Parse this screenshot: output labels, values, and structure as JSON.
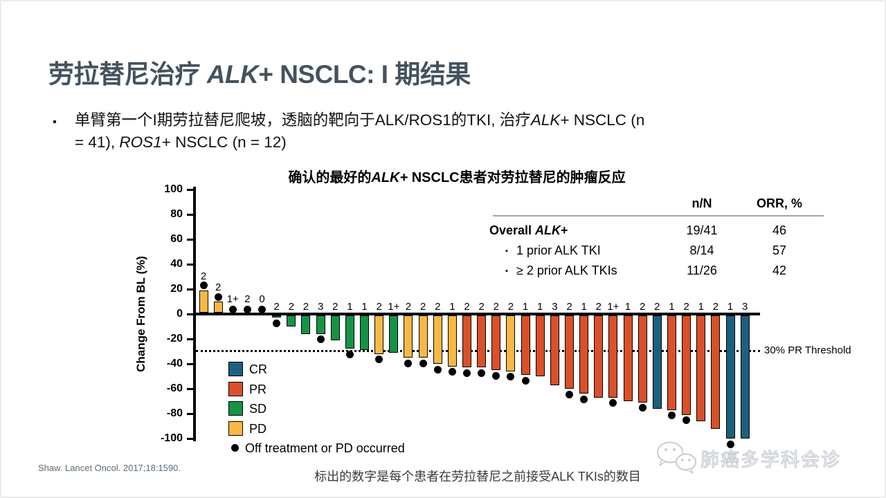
{
  "slide": {
    "title_runs": [
      {
        "t": "劳拉替尼治疗 "
      },
      {
        "t": "ALK",
        "i": 1
      },
      {
        "t": "+ NSCLC: I 期结果"
      }
    ],
    "bullet_marker": "▪",
    "bullet_lines": [
      [
        {
          "t": "单臂第一个I期劳拉替尼爬坡，透脑的靶向于ALK/ROS1的TKI, 治疗"
        },
        {
          "t": "ALK",
          "i": 1
        },
        {
          "t": "+ NSCLC (n"
        }
      ],
      [
        {
          "t": "= 41), "
        },
        {
          "t": "ROS1",
          "i": 1
        },
        {
          "t": "+ NSCLC (n = 12)"
        }
      ]
    ],
    "source": "Shaw. Lancet Oncol. 2017;18:1590.",
    "footnote": "标出的数字是每个患者在劳拉替尼之前接受ALK TKIs的数目",
    "watermark": "肺癌多学科会诊"
  },
  "colors": {
    "CR": "#1d5f7e",
    "PR": "#d9502a",
    "SD": "#169245",
    "PD": "#f7b845",
    "title": "#44525e"
  },
  "table": {
    "bullet": "▪",
    "col_headers": [
      "n/N",
      "ORR, %"
    ],
    "rows": [
      {
        "label_runs": [
          {
            "t": "Overall ",
            "b": 1
          },
          {
            "t": "ALK",
            "b": 1,
            "i": 1
          },
          {
            "t": "+",
            "b": 1
          }
        ],
        "nN": "19/41",
        "orr": "46",
        "indent": false
      },
      {
        "label_runs": [
          {
            "t": "1 prior ALK TKI"
          }
        ],
        "nN": "8/14",
        "orr": "57",
        "indent": true
      },
      {
        "label_runs": [
          {
            "t": "≥ 2 prior ALK TKIs"
          }
        ],
        "nN": "11/26",
        "orr": "42",
        "indent": true
      }
    ]
  },
  "chart_data": {
    "type": "bar",
    "title_runs": [
      {
        "t": "确认的最好的"
      },
      {
        "t": "ALK+",
        "i": 1
      },
      {
        "t": " NSCLC患者对劳拉替尼的肿瘤反应"
      }
    ],
    "ylabel": "Change From BL (%)",
    "ylim": [
      -100,
      100
    ],
    "yticks": [
      100,
      80,
      60,
      40,
      20,
      0,
      -20,
      -40,
      -60,
      -80,
      -100
    ],
    "threshold": {
      "value": -30,
      "label": "30% PR Threshold"
    },
    "legend": [
      {
        "key": "CR",
        "label": "CR"
      },
      {
        "key": "PR",
        "label": "PR"
      },
      {
        "key": "SD",
        "label": "SD"
      },
      {
        "key": "PD",
        "label": "PD"
      }
    ],
    "dot_legend_label": "Off treatment or PD occurred",
    "bars": [
      {
        "value": 19,
        "label": "2",
        "cat": "PD",
        "dot": true
      },
      {
        "value": 10,
        "label": "2",
        "cat": "PD",
        "dot": true
      },
      {
        "value": 0,
        "label": "1+",
        "cat": "",
        "dot": true
      },
      {
        "value": 0,
        "label": "2",
        "cat": "",
        "dot": true
      },
      {
        "value": 0,
        "label": "0",
        "cat": "",
        "dot": true
      },
      {
        "value": -3,
        "label": "2",
        "cat": "SD",
        "dot": true
      },
      {
        "value": -10,
        "label": "2",
        "cat": "SD",
        "dot": false
      },
      {
        "value": -16,
        "label": "2",
        "cat": "SD",
        "dot": false
      },
      {
        "value": -16,
        "label": "3",
        "cat": "SD",
        "dot": true
      },
      {
        "value": -21,
        "label": "2",
        "cat": "SD",
        "dot": false
      },
      {
        "value": -28,
        "label": "1",
        "cat": "SD",
        "dot": true
      },
      {
        "value": -29,
        "label": "1",
        "cat": "SD",
        "dot": false
      },
      {
        "value": -32,
        "label": "2",
        "cat": "PD",
        "dot": true
      },
      {
        "value": -31,
        "label": "1+",
        "cat": "SD",
        "dot": false
      },
      {
        "value": -35,
        "label": "2",
        "cat": "PD",
        "dot": true
      },
      {
        "value": -35,
        "label": "2",
        "cat": "PD",
        "dot": true
      },
      {
        "value": -40,
        "label": "2",
        "cat": "PD",
        "dot": true
      },
      {
        "value": -42,
        "label": "1",
        "cat": "PD",
        "dot": true
      },
      {
        "value": -43,
        "label": "2",
        "cat": "PR",
        "dot": true
      },
      {
        "value": -43,
        "label": "2",
        "cat": "PR",
        "dot": true
      },
      {
        "value": -45,
        "label": "2",
        "cat": "PR",
        "dot": true
      },
      {
        "value": -46,
        "label": "2",
        "cat": "PD",
        "dot": true
      },
      {
        "value": -49,
        "label": "1",
        "cat": "PR",
        "dot": true
      },
      {
        "value": -50,
        "label": "1",
        "cat": "PR",
        "dot": false
      },
      {
        "value": -57,
        "label": "3",
        "cat": "PR",
        "dot": false
      },
      {
        "value": -60,
        "label": "2",
        "cat": "PR",
        "dot": true
      },
      {
        "value": -64,
        "label": "1",
        "cat": "PR",
        "dot": true
      },
      {
        "value": -67,
        "label": "2",
        "cat": "PR",
        "dot": false
      },
      {
        "value": -67,
        "label": "1+",
        "cat": "PR",
        "dot": true
      },
      {
        "value": -70,
        "label": "1",
        "cat": "PR",
        "dot": false
      },
      {
        "value": -71,
        "label": "2",
        "cat": "PR",
        "dot": true
      },
      {
        "value": -76,
        "label": "2",
        "cat": "CR",
        "dot": false
      },
      {
        "value": -77,
        "label": "1",
        "cat": "PR",
        "dot": true
      },
      {
        "value": -81,
        "label": "2",
        "cat": "PR",
        "dot": true
      },
      {
        "value": -86,
        "label": "1",
        "cat": "PR",
        "dot": false
      },
      {
        "value": -92,
        "label": "2",
        "cat": "PR",
        "dot": false
      },
      {
        "value": -100,
        "label": "1",
        "cat": "CR",
        "dot": true
      },
      {
        "value": -100,
        "label": "3",
        "cat": "CR",
        "dot": false
      }
    ]
  }
}
